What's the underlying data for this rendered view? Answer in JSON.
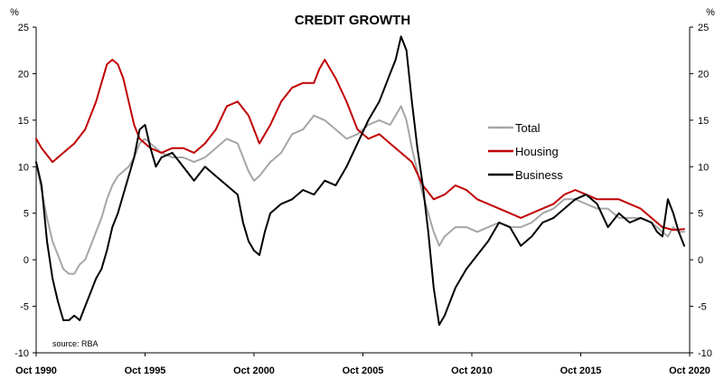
{
  "chart_data": {
    "type": "line",
    "title": "CREDIT GROWTH",
    "unit_left": "%",
    "unit_right": "%",
    "source": "source: RBA",
    "ylim": [
      -10,
      25
    ],
    "yticks": [
      "25",
      "20",
      "15",
      "10",
      "5",
      "0",
      "-5",
      "-10"
    ],
    "ytick_values": [
      25,
      20,
      15,
      10,
      5,
      0,
      -5,
      -10
    ],
    "xlim": [
      1990.75,
      2020.75
    ],
    "xticks": [
      "Oct 1990",
      "Oct 1995",
      "Oct 2000",
      "Oct 2005",
      "Oct 2010",
      "Oct 2015",
      "Oct 2020"
    ],
    "xtick_values": [
      1990.75,
      1995.75,
      2000.75,
      2005.75,
      2010.75,
      2015.75,
      2020.75
    ],
    "legend_position": "center-right",
    "colors": {
      "Total": "#a6a6a6",
      "Housing": "#c00000",
      "Business": "#000000"
    },
    "series": [
      {
        "name": "Total",
        "x": [
          1990.75,
          1991.0,
          1991.25,
          1991.5,
          1991.75,
          1992.0,
          1992.25,
          1992.5,
          1992.75,
          1993.0,
          1993.25,
          1993.5,
          1993.75,
          1994.0,
          1994.25,
          1994.5,
          1994.75,
          1995.0,
          1995.25,
          1995.5,
          1995.75,
          1996.0,
          1996.5,
          1997.0,
          1997.5,
          1998.0,
          1998.5,
          1999.0,
          1999.5,
          2000.0,
          2000.5,
          2000.75,
          2001.0,
          2001.5,
          2002.0,
          2002.5,
          2003.0,
          2003.5,
          2004.0,
          2004.5,
          2005.0,
          2005.5,
          2006.0,
          2006.5,
          2007.0,
          2007.5,
          2007.75,
          2008.0,
          2008.5,
          2009.0,
          2009.25,
          2009.5,
          2010.0,
          2010.5,
          2011.0,
          2011.5,
          2012.0,
          2012.5,
          2013.0,
          2013.5,
          2014.0,
          2014.5,
          2015.0,
          2015.5,
          2016.0,
          2016.5,
          2017.0,
          2017.5,
          2018.0,
          2018.5,
          2019.0,
          2019.5,
          2019.75,
          2020.0,
          2020.25,
          2020.5
        ],
        "values": [
          10.5,
          7.5,
          4.5,
          2.0,
          0.5,
          -1.0,
          -1.5,
          -1.5,
          -0.5,
          0.0,
          1.5,
          3.0,
          4.5,
          6.5,
          8.0,
          9.0,
          9.5,
          10.0,
          11.0,
          12.5,
          13.0,
          12.5,
          11.5,
          11.0,
          11.0,
          10.5,
          11.0,
          12.0,
          13.0,
          12.5,
          9.5,
          8.5,
          9.0,
          10.5,
          11.5,
          13.5,
          14.0,
          15.5,
          15.0,
          14.0,
          13.0,
          13.5,
          14.5,
          15.0,
          14.5,
          16.5,
          15.0,
          12.0,
          7.0,
          3.0,
          1.5,
          2.5,
          3.5,
          3.5,
          3.0,
          3.5,
          4.0,
          3.5,
          3.5,
          4.0,
          5.0,
          5.5,
          6.5,
          6.5,
          6.0,
          5.5,
          5.5,
          4.5,
          4.5,
          4.5,
          4.0,
          3.0,
          2.5,
          3.5,
          3.0,
          3.0
        ]
      },
      {
        "name": "Housing",
        "x": [
          1990.75,
          1991.0,
          1991.5,
          1991.75,
          1992.0,
          1992.5,
          1993.0,
          1993.5,
          1993.75,
          1994.0,
          1994.25,
          1994.5,
          1994.75,
          1995.0,
          1995.25,
          1995.5,
          1995.75,
          1996.0,
          1996.5,
          1997.0,
          1997.5,
          1998.0,
          1998.5,
          1999.0,
          1999.5,
          2000.0,
          2000.5,
          2000.75,
          2001.0,
          2001.5,
          2002.0,
          2002.5,
          2003.0,
          2003.5,
          2003.75,
          2004.0,
          2004.5,
          2005.0,
          2005.5,
          2006.0,
          2006.5,
          2007.0,
          2007.5,
          2008.0,
          2008.5,
          2009.0,
          2009.5,
          2010.0,
          2010.5,
          2011.0,
          2011.5,
          2012.0,
          2012.5,
          2013.0,
          2013.5,
          2014.0,
          2014.5,
          2015.0,
          2015.5,
          2016.0,
          2016.5,
          2017.0,
          2017.5,
          2018.0,
          2018.5,
          2019.0,
          2019.5,
          2020.0,
          2020.5
        ],
        "values": [
          13.0,
          12.0,
          10.5,
          11.0,
          11.5,
          12.5,
          14.0,
          17.0,
          19.0,
          21.0,
          21.5,
          21.0,
          19.5,
          17.0,
          14.5,
          13.0,
          12.5,
          12.0,
          11.5,
          12.0,
          12.0,
          11.5,
          12.5,
          14.0,
          16.5,
          17.0,
          15.5,
          14.0,
          12.5,
          14.5,
          17.0,
          18.5,
          19.0,
          19.0,
          20.5,
          21.5,
          19.5,
          17.0,
          14.0,
          13.0,
          13.5,
          12.5,
          11.5,
          10.5,
          8.0,
          6.5,
          7.0,
          8.0,
          7.5,
          6.5,
          6.0,
          5.5,
          5.0,
          4.5,
          5.0,
          5.5,
          6.0,
          7.0,
          7.5,
          7.0,
          6.5,
          6.5,
          6.5,
          6.0,
          5.5,
          4.5,
          3.5,
          3.2,
          3.3
        ]
      },
      {
        "name": "Business",
        "x": [
          1990.75,
          1991.0,
          1991.25,
          1991.5,
          1991.75,
          1992.0,
          1992.25,
          1992.5,
          1992.75,
          1993.0,
          1993.25,
          1993.5,
          1993.75,
          1994.0,
          1994.25,
          1994.5,
          1994.75,
          1995.0,
          1995.25,
          1995.5,
          1995.75,
          1996.0,
          1996.25,
          1996.5,
          1997.0,
          1997.5,
          1998.0,
          1998.5,
          1999.0,
          1999.5,
          2000.0,
          2000.25,
          2000.5,
          2000.75,
          2001.0,
          2001.25,
          2001.5,
          2002.0,
          2002.5,
          2003.0,
          2003.5,
          2004.0,
          2004.5,
          2005.0,
          2005.5,
          2006.0,
          2006.5,
          2007.0,
          2007.25,
          2007.5,
          2007.75,
          2008.0,
          2008.25,
          2008.5,
          2008.75,
          2009.0,
          2009.25,
          2009.5,
          2010.0,
          2010.5,
          2011.0,
          2011.5,
          2012.0,
          2012.5,
          2013.0,
          2013.5,
          2014.0,
          2014.5,
          2015.0,
          2015.5,
          2016.0,
          2016.5,
          2017.0,
          2017.5,
          2018.0,
          2018.5,
          2019.0,
          2019.25,
          2019.5,
          2019.75,
          2020.0,
          2020.25,
          2020.5
        ],
        "values": [
          10.5,
          8.0,
          2.0,
          -2.0,
          -4.5,
          -6.5,
          -6.5,
          -6.0,
          -6.5,
          -5.0,
          -3.5,
          -2.0,
          -1.0,
          1.0,
          3.5,
          5.0,
          7.0,
          9.0,
          11.0,
          14.0,
          14.5,
          12.0,
          10.0,
          11.0,
          11.5,
          10.0,
          8.5,
          10.0,
          9.0,
          8.0,
          7.0,
          4.0,
          2.0,
          1.0,
          0.5,
          3.0,
          5.0,
          6.0,
          6.5,
          7.5,
          7.0,
          8.5,
          8.0,
          10.0,
          12.5,
          15.0,
          17.0,
          20.0,
          21.5,
          24.0,
          22.5,
          17.0,
          12.0,
          8.0,
          3.0,
          -3.0,
          -7.0,
          -6.0,
          -3.0,
          -1.0,
          0.5,
          2.0,
          4.0,
          3.5,
          1.5,
          2.5,
          4.0,
          4.5,
          5.5,
          6.5,
          7.0,
          6.0,
          3.5,
          5.0,
          4.0,
          4.5,
          4.0,
          3.0,
          2.5,
          6.5,
          5.0,
          3.0,
          1.5
        ]
      }
    ]
  }
}
